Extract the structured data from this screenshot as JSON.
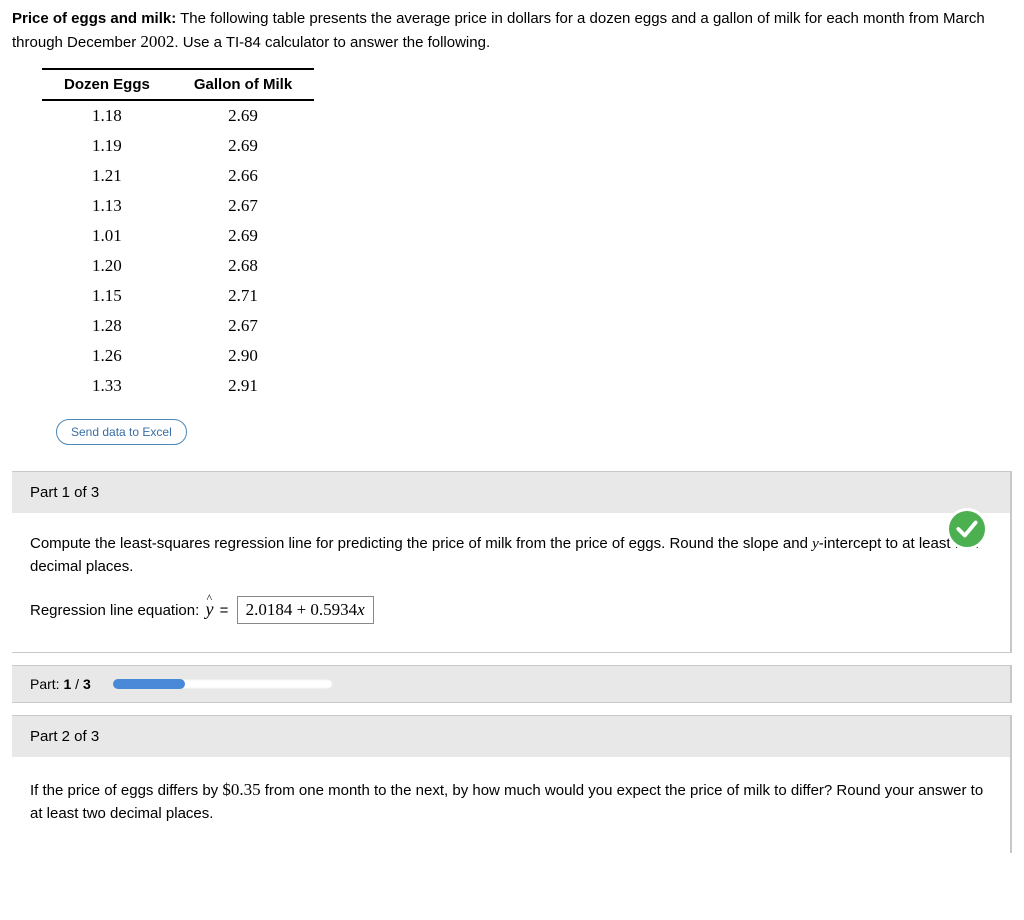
{
  "intro": {
    "bold_lead": "Price of eggs and milk:",
    "text_after": " The following table presents the average price in dollars for a dozen eggs and a gallon of milk for each month from March through December ",
    "year": "2002",
    "text_tail": ". Use a TI-84 calculator to answer the following."
  },
  "table": {
    "columns": [
      "Dozen Eggs",
      "Gallon of Milk"
    ],
    "rows": [
      [
        "1.18",
        "2.69"
      ],
      [
        "1.19",
        "2.69"
      ],
      [
        "1.21",
        "2.66"
      ],
      [
        "1.13",
        "2.67"
      ],
      [
        "1.01",
        "2.69"
      ],
      [
        "1.20",
        "2.68"
      ],
      [
        "1.15",
        "2.71"
      ],
      [
        "1.28",
        "2.67"
      ],
      [
        "1.26",
        "2.90"
      ],
      [
        "1.33",
        "2.91"
      ]
    ]
  },
  "buttons": {
    "excel": "Send data to Excel"
  },
  "part1": {
    "header": "Part 1 of 3",
    "question_a": "Compute the least-squares regression line for predicting the price of milk from the price of eggs. Round the slope and ",
    "yint_label": "y",
    "question_b": "-intercept to at least four decimal places.",
    "eq_label": "Regression line equation: ",
    "y_symbol": "y",
    "equals": " = ",
    "answer": "2.0184 + 0.5934",
    "answer_x": "x",
    "status": "correct"
  },
  "progress": {
    "label": "Part: ",
    "current": "1",
    "sep": " / ",
    "total": "3",
    "fill_pct": 33
  },
  "part2": {
    "header": "Part 2 of 3",
    "q_a": "If the price of eggs differs by ",
    "amount": "$0.35",
    "q_b": " from one month to the next, by how much would you expect the price of milk to differ? Round your answer to at least two decimal places."
  },
  "colors": {
    "header_bg": "#e8e8e8",
    "accent_blue": "#4a88d8",
    "correct_green": "#4caf50"
  }
}
